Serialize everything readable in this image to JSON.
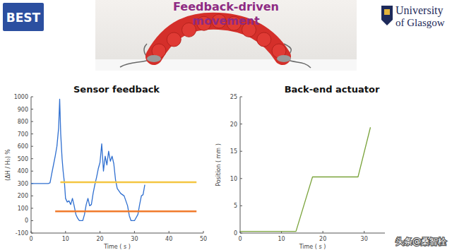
{
  "banner": {
    "title": [
      "Feedback-driven",
      "movement"
    ]
  },
  "logos": {
    "left": "BEST",
    "right": [
      "University",
      "of Glasgow"
    ]
  },
  "watermark": "头条@桑智栓",
  "chart_data": [
    {
      "type": "line",
      "title": "Sensor feedback",
      "x_label": "Time ( s )",
      "y_label": "(ΔH / H₀) %",
      "xlim": [
        0,
        50
      ],
      "xticks": [
        0,
        10,
        20,
        30,
        40,
        50
      ],
      "ylim": [
        -100,
        1000
      ],
      "yticks": [
        -100,
        0,
        100,
        200,
        300,
        400,
        500,
        600,
        700,
        800,
        900,
        1000
      ],
      "grid": false,
      "series": [
        {
          "color": "#2f6fd0",
          "x": [
            0,
            5,
            5.5,
            6,
            6.5,
            7,
            7.5,
            8,
            8.3,
            8.6,
            9,
            9.3,
            9.7,
            10,
            10.5,
            11,
            11.5,
            12,
            12.5,
            13,
            13.5,
            14,
            15,
            15.5,
            16,
            16.5,
            17,
            17.5,
            18,
            18.5,
            19,
            19.5,
            20,
            20.5,
            21,
            21.5,
            22,
            22.5,
            23,
            23.5,
            24,
            24.5,
            25,
            26,
            27,
            28,
            28.5,
            29,
            30,
            31,
            31.5,
            32,
            32.5,
            33
          ],
          "values": [
            300,
            300,
            305,
            380,
            450,
            520,
            600,
            750,
            980,
            700,
            500,
            400,
            300,
            180,
            150,
            160,
            130,
            180,
            120,
            50,
            20,
            0,
            0,
            50,
            130,
            180,
            120,
            130,
            220,
            290,
            350,
            420,
            470,
            620,
            400,
            520,
            450,
            560,
            480,
            520,
            460,
            330,
            260,
            220,
            200,
            120,
            40,
            0,
            0,
            50,
            130,
            200,
            210,
            290
          ]
        },
        {
          "color": "#f4c542",
          "x": [
            8.5,
            48
          ],
          "values": [
            310,
            310
          ]
        },
        {
          "color": "#f07b2c",
          "x": [
            7,
            48
          ],
          "values": [
            75,
            75
          ]
        }
      ]
    },
    {
      "type": "line",
      "title": "Back-end actuator",
      "x_label": "Time ( s )",
      "y_label": "Position ( mm )",
      "xlim": [
        0,
        35
      ],
      "xticks": [
        0,
        10,
        20,
        30
      ],
      "ylim": [
        0,
        25
      ],
      "yticks": [
        0,
        5,
        10,
        15,
        20,
        25
      ],
      "grid": false,
      "series": [
        {
          "color": "#7aa33b",
          "x": [
            0,
            13.5,
            17.5,
            28.5,
            31.5
          ],
          "values": [
            0.3,
            0.3,
            10.3,
            10.3,
            19.4
          ]
        }
      ]
    }
  ]
}
